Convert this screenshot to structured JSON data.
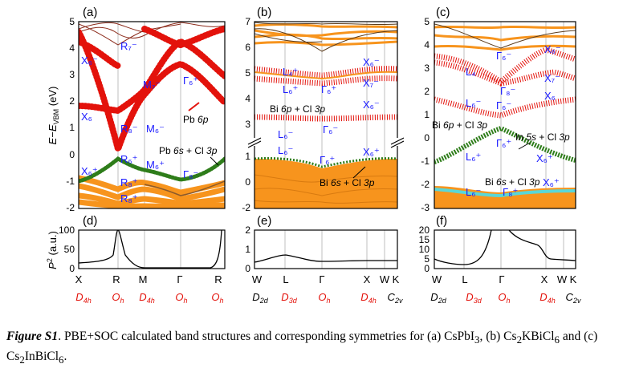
{
  "colors": {
    "red": "#e3120b",
    "orange": "#f7941d",
    "green": "#2e7d1a",
    "cyan": "#5ad7d7",
    "label_blue": "#1a1aff",
    "sym_red": "#e3120b",
    "dark_line": "#8b2a1a",
    "gridline": "#bfbfbf"
  },
  "axes": {
    "band_ylabel": "E−E_VBM (eV)",
    "band_ylabel_parts": {
      "E": "E",
      "minus": "−",
      "sub": "VBM",
      "unit": "(eV)"
    },
    "p2_ylabel": "P² (a.u.)",
    "p2_ylabel_parts": {
      "P": "P",
      "sup": "2",
      "unit": "(a.u.)"
    }
  },
  "panels": [
    {
      "id": "a",
      "label": "(a)",
      "yticks": [
        "5",
        "4",
        "3",
        "2",
        "1",
        "0",
        "-1",
        "-2"
      ],
      "ylim": [
        -2,
        5
      ],
      "kpoints": [
        "X",
        "R",
        "M",
        "Γ",
        "R"
      ],
      "symmetries": [
        {
          "main": "D",
          "sub": "4h"
        },
        {
          "main": "O",
          "sub": "h"
        },
        {
          "main": "D",
          "sub": "4h"
        },
        {
          "main": "O",
          "sub": "h"
        },
        {
          "main": "O",
          "sub": "h"
        }
      ],
      "annotations": [
        "Pb 6p",
        "Pb 6s + Cl 3p"
      ],
      "band_labels": [
        "R₇⁻",
        "X₆⁻",
        "M₇⁻",
        "Γ₆⁺",
        "X₆",
        "R₈⁻",
        "M₆⁻",
        "R₆⁺",
        "X₆⁺",
        "M₆⁺",
        "Γ₈⁻",
        "R₈⁺",
        "R₈⁺"
      ]
    },
    {
      "id": "b",
      "label": "(b)",
      "yticks": [
        "7",
        "6",
        "5",
        "4",
        "3",
        "1",
        "0",
        "-1",
        "-2"
      ],
      "ylim": [
        -2,
        7
      ],
      "kpoints": [
        "W",
        "L",
        "Γ",
        "X",
        "W",
        "K"
      ],
      "symmetries": [
        {
          "main": "D",
          "sub": "2d"
        },
        {
          "main": "D",
          "sub": "3d"
        },
        {
          "main": "O",
          "sub": "h"
        },
        {
          "main": "D",
          "sub": "4h"
        },
        {
          "main": "C",
          "sub": "2v"
        }
      ],
      "annotations": [
        "Bi 6p + Cl 3p",
        "Bi 6s + Cl 3p"
      ],
      "band_labels": [
        "L₄⁺",
        "L₆⁺",
        "Γ₆⁺",
        "X₆⁻",
        "X₇⁻",
        "X₆⁻",
        "L₆⁻",
        "Γ₆⁻",
        "L₆⁻",
        "Γ₆⁺",
        "X₆⁺"
      ]
    },
    {
      "id": "c",
      "label": "(c)",
      "yticks": [
        "5",
        "4",
        "3",
        "2",
        "1",
        "0",
        "-1",
        "-2",
        "-3"
      ],
      "ylim": [
        -3,
        5
      ],
      "kpoints": [
        "W",
        "L",
        "Γ",
        "X",
        "W",
        "K"
      ],
      "symmetries": [
        {
          "main": "D",
          "sub": "2d"
        },
        {
          "main": "D",
          "sub": "3d"
        },
        {
          "main": "O",
          "sub": "h"
        },
        {
          "main": "D",
          "sub": "4h"
        },
        {
          "main": "C",
          "sub": "2v"
        }
      ],
      "annotations": [
        "Bi 6p + Cl 3p",
        "In 5s + Cl 3p",
        "Bi 6s + Cl 3p"
      ],
      "band_labels": [
        "Γ₆⁻",
        "X₆⁻",
        "L₄",
        "Γ₈⁻",
        "X₇⁻",
        "X₆",
        "L₆⁻",
        "Γ₆⁻",
        "L₆⁺",
        "Γ₆⁺",
        "X₆⁺",
        "L₆⁻",
        "Γ₈⁺",
        "X₆⁺"
      ]
    }
  ],
  "p2_panels": [
    {
      "id": "d",
      "label": "(d)",
      "yticks": [
        "100",
        "50",
        "0"
      ],
      "ylim": [
        0,
        100
      ]
    },
    {
      "id": "e",
      "label": "(e)",
      "yticks": [
        "2",
        "1",
        "0"
      ],
      "ylim": [
        0,
        2
      ]
    },
    {
      "id": "f",
      "label": "(f)",
      "yticks": [
        "20",
        "15",
        "10",
        "5",
        "0"
      ],
      "ylim": [
        0,
        20
      ]
    }
  ],
  "caption": {
    "figure_label": "Figure S1",
    "text_before": ". PBE+SOC  calculated band structures and corresponding symmetries for (a) CsPbI",
    "sub1": "3",
    "text_mid1": ", (b) Cs",
    "sub2": "2",
    "text_mid2": "KBiCl",
    "sub3": "6",
    "text_mid3": " and (c) Cs",
    "sub4": "2",
    "text_mid4": "InBiCl",
    "sub5": "6",
    "text_end": "."
  }
}
